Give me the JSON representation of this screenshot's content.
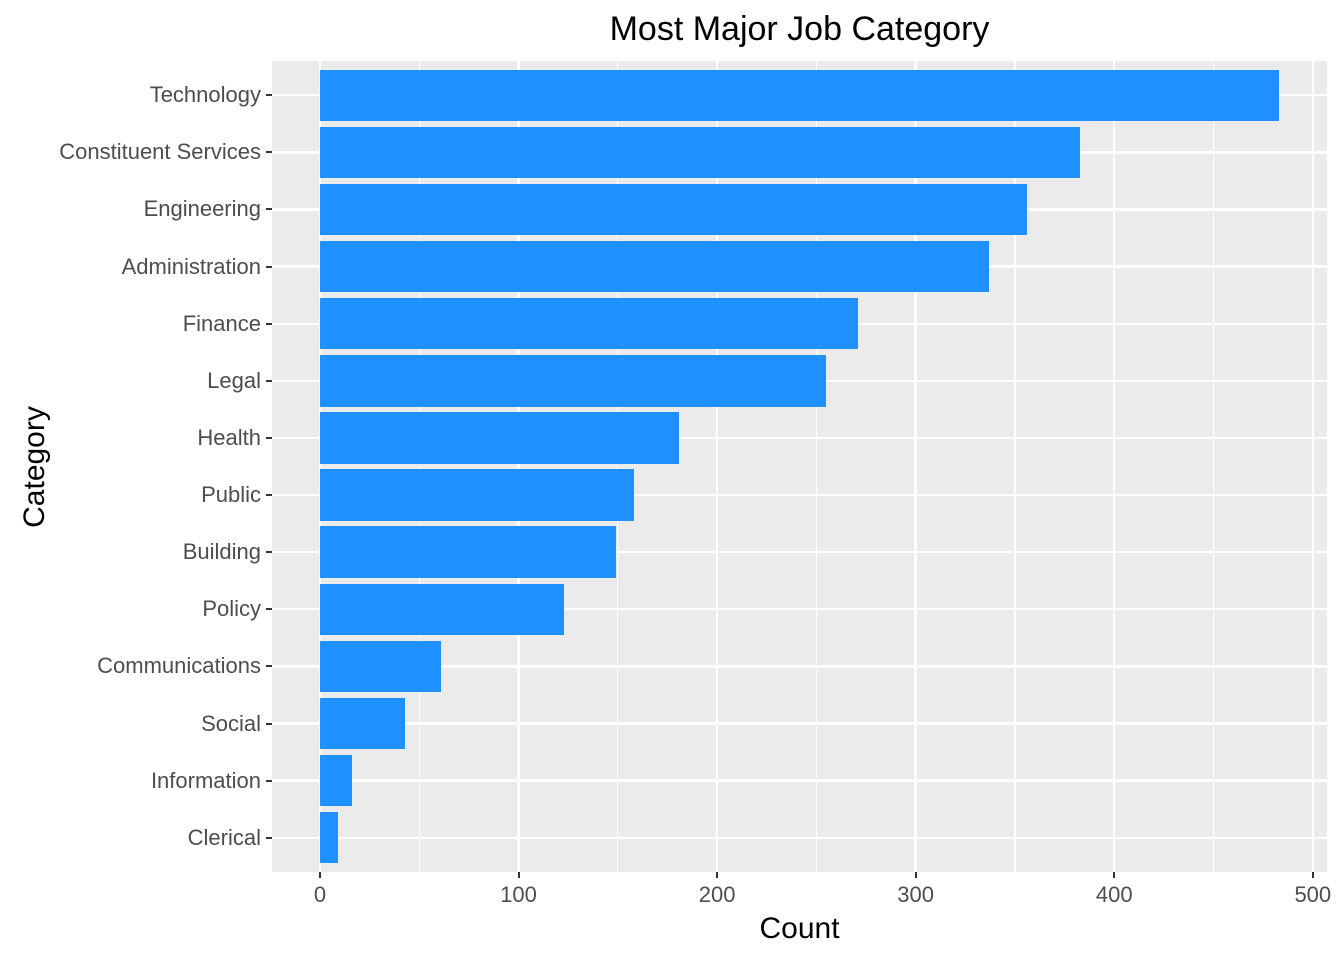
{
  "chart_data": {
    "type": "bar",
    "orientation": "horizontal",
    "title": "Most Major Job Category",
    "xlabel": "Count",
    "ylabel": "Category",
    "categories": [
      "Technology",
      "Constituent Services",
      "Engineering",
      "Administration",
      "Finance",
      "Legal",
      "Health",
      "Public",
      "Building",
      "Policy",
      "Communications",
      "Social",
      "Information",
      "Clerical"
    ],
    "values": [
      483,
      383,
      356,
      337,
      271,
      255,
      181,
      158,
      149,
      123,
      61,
      43,
      16,
      9
    ],
    "x_ticks": [
      0,
      100,
      200,
      300,
      400,
      500
    ],
    "x_minor_ticks": [
      50,
      150,
      250,
      350,
      450
    ],
    "xlim": [
      -24.15,
      507.15
    ],
    "legend_position": "none",
    "grid": "on",
    "colors": {
      "bar_fill": "#1E90FF",
      "panel_background": "#EBEBEB",
      "gridline": "#FFFFFF",
      "tick_label": "#4D4D4D",
      "tick_mark": "#333333",
      "title_text": "#000000"
    }
  }
}
